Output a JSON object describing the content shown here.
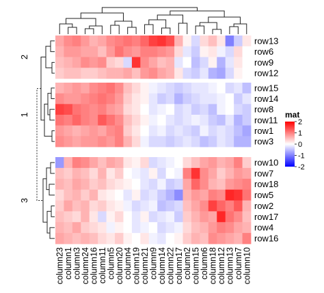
{
  "chart_data": {
    "type": "heatmap",
    "columns": [
      "column23",
      "column1",
      "column3",
      "column24",
      "column16",
      "column11",
      "column5",
      "column20",
      "column4",
      "column19",
      "column21",
      "column9",
      "column14",
      "column22",
      "column17",
      "column2",
      "column15",
      "column6",
      "column18",
      "column12",
      "column13",
      "column7",
      "column10"
    ],
    "row_groups": [
      {
        "label": "2",
        "rows": [
          "row13",
          "row6",
          "row9",
          "row12"
        ]
      },
      {
        "label": "1",
        "rows": [
          "row15",
          "row14",
          "row8",
          "row11",
          "row1",
          "row3"
        ]
      },
      {
        "label": "3",
        "rows": [
          "row10",
          "row7",
          "row18",
          "row5",
          "row2",
          "row17",
          "row4",
          "row16"
        ]
      }
    ],
    "values": {
      "row13": [
        0.7,
        0.9,
        1.0,
        0.8,
        0.6,
        0.7,
        0.9,
        1.0,
        1.1,
        1.0,
        1.2,
        1.5,
        1.6,
        1.4,
        0.6,
        0.1,
        -0.3,
        0.3,
        0.5,
        0.2,
        -1.0,
        -0.4,
        0.2
      ],
      "row6": [
        0.6,
        0.8,
        0.8,
        0.7,
        0.7,
        0.5,
        0.8,
        1.1,
        0.9,
        0.8,
        1.0,
        1.0,
        0.9,
        0.8,
        0.3,
        -0.2,
        -0.4,
        0.1,
        0.2,
        -0.1,
        -0.3,
        0.3,
        0.0
      ],
      "row9": [
        0.5,
        0.6,
        0.7,
        0.9,
        0.8,
        0.9,
        0.4,
        0.3,
        -0.3,
        1.6,
        0.9,
        0.7,
        0.5,
        0.6,
        -0.2,
        0.0,
        -0.5,
        -0.3,
        0.1,
        -0.6,
        -0.2,
        0.2,
        0.0
      ],
      "row12": [
        0.4,
        0.5,
        0.5,
        0.4,
        0.4,
        0.5,
        0.6,
        0.6,
        0.7,
        0.5,
        0.8,
        0.9,
        0.7,
        0.6,
        0.2,
        -0.3,
        -0.4,
        -0.2,
        -0.6,
        -0.7,
        -0.3,
        0.1,
        0.0
      ],
      "row15": [
        0.6,
        0.7,
        0.8,
        0.7,
        0.9,
        1.0,
        1.1,
        0.9,
        0.5,
        0.3,
        0.1,
        -0.1,
        -0.2,
        -0.3,
        -0.4,
        -0.3,
        -0.2,
        -0.2,
        -0.1,
        0.0,
        -0.3,
        -0.2,
        -0.5
      ],
      "row14": [
        0.9,
        0.8,
        0.8,
        0.9,
        1.0,
        1.1,
        1.0,
        0.8,
        0.4,
        0.2,
        0.1,
        -0.2,
        -0.4,
        -0.3,
        -0.6,
        -0.4,
        -0.3,
        -0.2,
        -0.2,
        -0.1,
        0.0,
        -0.4,
        -0.2
      ],
      "row8": [
        1.5,
        1.4,
        1.1,
        1.0,
        0.9,
        1.0,
        0.8,
        0.7,
        0.3,
        0.2,
        0.0,
        -0.2,
        -0.1,
        0.0,
        -0.3,
        -0.2,
        -0.4,
        -0.3,
        -0.5,
        -0.1,
        0.0,
        -0.3,
        -0.4
      ],
      "row11": [
        1.1,
        1.0,
        1.2,
        1.0,
        0.9,
        1.3,
        1.1,
        0.9,
        0.5,
        0.3,
        0.1,
        -0.1,
        0.0,
        -0.2,
        -0.3,
        -0.2,
        -0.1,
        -0.2,
        -0.4,
        -0.5,
        -0.2,
        -0.6,
        -0.4
      ],
      "row1": [
        0.8,
        0.7,
        0.6,
        0.7,
        0.8,
        0.7,
        0.9,
        1.0,
        0.4,
        0.2,
        0.0,
        -0.2,
        -0.1,
        -0.3,
        -0.2,
        -0.3,
        -0.4,
        -0.1,
        -0.3,
        -0.2,
        -0.3,
        -0.5,
        -0.7
      ],
      "row3": [
        0.9,
        0.8,
        0.7,
        0.8,
        0.8,
        0.9,
        0.8,
        1.0,
        0.6,
        0.3,
        -0.1,
        -0.3,
        -0.3,
        -0.4,
        -0.3,
        -0.2,
        -0.3,
        -0.5,
        -0.4,
        -0.2,
        -0.3,
        -0.6,
        -0.6
      ],
      "row10": [
        -0.8,
        0.6,
        1.0,
        0.9,
        0.7,
        0.5,
        0.7,
        0.6,
        0.2,
        0.1,
        0.3,
        -0.3,
        -0.2,
        -0.1,
        0.0,
        0.3,
        0.5,
        0.7,
        0.8,
        0.6,
        0.7,
        1.0,
        0.4
      ],
      "row7": [
        0.5,
        0.4,
        0.6,
        0.5,
        0.3,
        0.6,
        0.2,
        0.4,
        0.0,
        -0.1,
        -0.2,
        0.1,
        -0.3,
        0.0,
        -0.1,
        1.0,
        1.6,
        0.9,
        0.7,
        0.4,
        0.6,
        0.8,
        0.7
      ],
      "row18": [
        0.6,
        0.5,
        0.7,
        0.6,
        0.4,
        0.5,
        0.3,
        0.2,
        0.1,
        0.0,
        -0.2,
        -0.3,
        -0.1,
        -0.4,
        -0.3,
        0.7,
        1.2,
        0.9,
        0.6,
        0.5,
        0.8,
        0.9,
        1.0
      ],
      "row5": [
        0.3,
        0.5,
        0.6,
        0.4,
        0.6,
        0.2,
        0.1,
        0.0,
        -0.2,
        0.1,
        -0.3,
        -0.2,
        -0.4,
        -0.6,
        -0.9,
        0.6,
        0.8,
        0.7,
        1.0,
        0.9,
        1.7,
        1.6,
        1.1
      ],
      "row2": [
        0.4,
        0.7,
        0.5,
        0.6,
        0.3,
        0.4,
        0.2,
        0.1,
        -0.1,
        -0.3,
        -0.2,
        -0.1,
        -0.5,
        -0.4,
        -0.3,
        0.5,
        0.7,
        0.9,
        1.5,
        1.2,
        1.0,
        1.3,
        0.6
      ],
      "row17": [
        0.5,
        0.4,
        0.3,
        0.6,
        0.2,
        -0.3,
        0.1,
        0.3,
        0.0,
        -0.2,
        0.1,
        -0.3,
        -0.2,
        -0.1,
        -0.4,
        0.4,
        0.6,
        0.8,
        0.7,
        1.7,
        1.1,
        0.9,
        0.5
      ],
      "row4": [
        0.6,
        0.5,
        0.7,
        0.4,
        0.3,
        0.2,
        -0.1,
        0.1,
        0.0,
        -0.2,
        -0.1,
        0.0,
        -0.3,
        -0.2,
        -0.1,
        0.3,
        0.5,
        0.6,
        0.8,
        1.0,
        0.9,
        0.7,
        0.6
      ],
      "row16": [
        0.7,
        0.6,
        0.5,
        0.6,
        0.5,
        0.3,
        0.2,
        0.4,
        0.1,
        0.0,
        0.2,
        -0.1,
        -0.2,
        0.0,
        0.1,
        0.4,
        0.6,
        0.5,
        0.9,
        0.8,
        0.7,
        0.6,
        1.0
      ]
    },
    "legend": {
      "title": "mat",
      "ticks": [
        2,
        1,
        0,
        -1,
        -2
      ],
      "tick_labels": [
        "2",
        "1",
        "0",
        "-1",
        "-2"
      ],
      "colors": {
        "high": "#ff0000",
        "mid": "#ffffff",
        "low": "#0000ff"
      }
    },
    "range": [
      -2,
      2
    ],
    "dendrograms": {
      "rows": true,
      "columns": true
    }
  }
}
